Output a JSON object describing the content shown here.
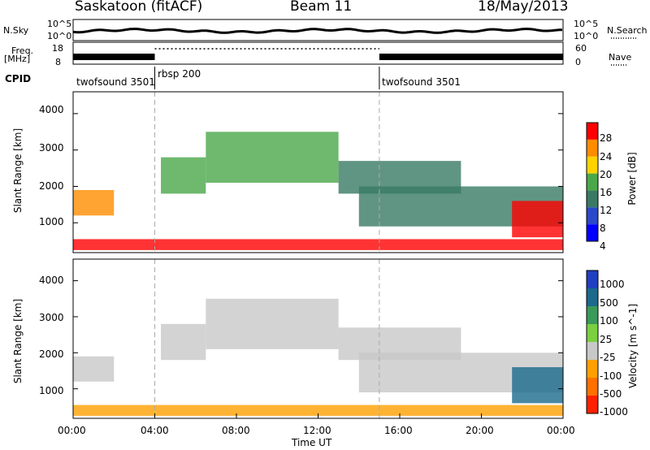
{
  "header": {
    "title": "Saskatoon (fitACF)",
    "beam": "Beam 11",
    "date": "18/May/2013"
  },
  "summary": {
    "left_top_label": "N.Sky",
    "left_bottom_label": "Freq.",
    "freq_unit": "[MHz]",
    "right_top_label": "N.Search",
    "right_bottom_label": "Nave",
    "sky_ticks": [
      "10^5",
      "10^0"
    ],
    "search_ticks": [
      "10^5",
      "10^0"
    ],
    "freq_ticks": [
      "18",
      "8"
    ],
    "nave_ticks": [
      "60",
      "0"
    ],
    "cpid_label": "CPID",
    "cpid_segments": [
      {
        "name": "twofsound 3501",
        "start_h": 0,
        "end_h": 4
      },
      {
        "name": "rbsp 200",
        "start_h": 4,
        "end_h": 15
      },
      {
        "name": "twofsound 3501",
        "start_h": 15,
        "end_h": 24
      }
    ]
  },
  "chart_data": [
    {
      "type": "heatmap",
      "quantity": "Power",
      "ylabel": "Slant Range [km]",
      "xlabel": "",
      "x_range_hours": [
        0,
        24
      ],
      "ylim": [
        180,
        4600
      ],
      "yticks": [
        "1000",
        "2000",
        "3000",
        "4000"
      ],
      "colorbar_label": "Power [dB]",
      "colorbar_ticks": [
        "4",
        "8",
        "12",
        "16",
        "20",
        "24",
        "28"
      ],
      "colorbar_colors": [
        "#0000ff",
        "#2a48c8",
        "#3a7a64",
        "#4aa84a",
        "#ffd200",
        "#ff8c00",
        "#ff0000"
      ],
      "features": [
        {
          "desc": "E-region echoes",
          "start_h": 0.0,
          "end_h": 24.0,
          "range_km": [
            250,
            550
          ],
          "level": 6
        },
        {
          "desc": "Near range band",
          "start_h": 0.0,
          "end_h": 2.0,
          "range_km": [
            1200,
            1900
          ],
          "level": 5
        },
        {
          "desc": "Rising band",
          "start_h": 4.3,
          "end_h": 6.5,
          "range_km": [
            1800,
            2800
          ],
          "level": 3
        },
        {
          "desc": "Ionospheric arc",
          "start_h": 6.5,
          "end_h": 13.0,
          "range_km": [
            2100,
            3500
          ],
          "level": 3
        },
        {
          "desc": "Descending band",
          "start_h": 13.0,
          "end_h": 19.0,
          "range_km": [
            1800,
            2700
          ],
          "level": 2
        },
        {
          "desc": "Long band",
          "start_h": 14.0,
          "end_h": 24.0,
          "range_km": [
            900,
            2000
          ],
          "level": 2
        },
        {
          "desc": "Late evening patch",
          "start_h": 21.5,
          "end_h": 24.0,
          "range_km": [
            600,
            1600
          ],
          "level": 6
        }
      ]
    },
    {
      "type": "heatmap",
      "quantity": "Velocity",
      "ylabel": "Slant Range [km]",
      "xlabel": "Time UT",
      "x_range_hours": [
        0,
        24
      ],
      "ylim": [
        180,
        4600
      ],
      "yticks": [
        "1000",
        "2000",
        "3000",
        "4000"
      ],
      "xticks": [
        "00:00",
        "04:00",
        "08:00",
        "12:00",
        "16:00",
        "20:00",
        "00:00"
      ],
      "colorbar_label": "Velocity [m s^-1]",
      "colorbar_ticks": [
        "1000",
        "500",
        "100",
        "25",
        "-25",
        "-100",
        "-500",
        "-1000"
      ],
      "colorbar_colors": [
        "#2040c0",
        "#1c6a8c",
        "#3a9a5a",
        "#7ad040",
        "#c8c8c8",
        "#ffa000",
        "#ff7000",
        "#ff2000"
      ],
      "features": [
        {
          "desc": "E-region echoes",
          "start_h": 0.0,
          "end_h": 24.0,
          "range_km": [
            250,
            550
          ],
          "level": 5
        },
        {
          "desc": "Near range band",
          "start_h": 0.0,
          "end_h": 2.0,
          "range_km": [
            1200,
            1900
          ],
          "level": 4
        },
        {
          "desc": "Rising band",
          "start_h": 4.3,
          "end_h": 6.5,
          "range_km": [
            1800,
            2800
          ],
          "level": 4
        },
        {
          "desc": "Ionospheric arc",
          "start_h": 6.5,
          "end_h": 13.0,
          "range_km": [
            2100,
            3500
          ],
          "level": 4
        },
        {
          "desc": "Descending band",
          "start_h": 13.0,
          "end_h": 19.0,
          "range_km": [
            1800,
            2700
          ],
          "level": 4
        },
        {
          "desc": "Long band",
          "start_h": 14.0,
          "end_h": 24.0,
          "range_km": [
            900,
            2000
          ],
          "level": 4
        },
        {
          "desc": "Late evening patch",
          "start_h": 21.5,
          "end_h": 24.0,
          "range_km": [
            600,
            1600
          ],
          "level": 1
        }
      ]
    }
  ]
}
